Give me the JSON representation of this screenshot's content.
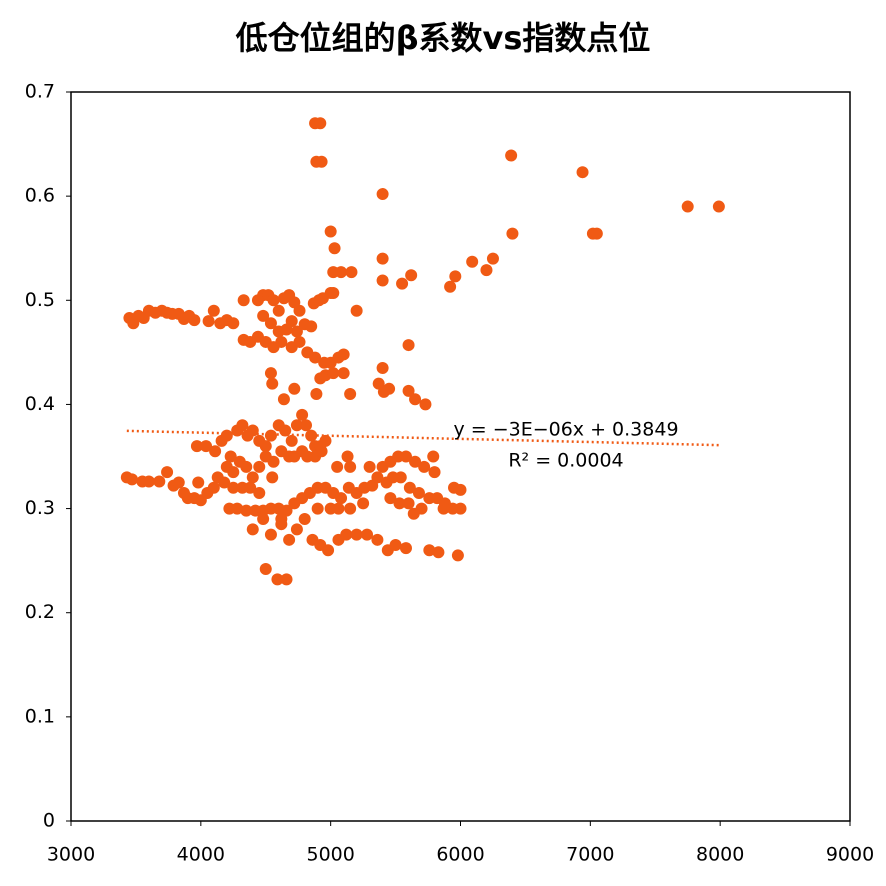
{
  "chart_data": {
    "type": "scatter",
    "title": "低仓位组的β系数vs指数点位",
    "color": "#f05a14",
    "xlim": [
      3000,
      9000
    ],
    "xticks": [
      3000,
      4000,
      5000,
      6000,
      7000,
      8000,
      9000
    ],
    "ylim": [
      0,
      0.7
    ],
    "yticks": [
      0,
      0.1,
      0.2,
      0.3,
      0.4,
      0.5,
      0.6,
      0.7
    ],
    "trendline": {
      "slope": -3e-06,
      "intercept": 0.3849,
      "x_range": [
        3430,
        8000
      ],
      "color": "#f05a14",
      "label": "y = −3E−06x + 0.3849",
      "r2_label": "R² = 0.0004"
    },
    "x": [
      4880,
      4920,
      4890,
      4930,
      5400,
      6390,
      6940,
      7750,
      7990,
      6400,
      7020,
      7050,
      5000,
      5030,
      5020,
      5080,
      5160,
      5400,
      5400,
      5620,
      5550,
      5920,
      5960,
      6090,
      6200,
      6250,
      5000,
      5020,
      4870,
      4910,
      4940,
      3450,
      3480,
      3520,
      3560,
      3600,
      3650,
      3700,
      3740,
      3780,
      3830,
      3870,
      3910,
      3950,
      4060,
      4100,
      4150,
      4200,
      4250,
      4330,
      4440,
      4480,
      4520,
      4560,
      4600,
      4640,
      4680,
      4720,
      4760,
      4480,
      4540,
      4600,
      4660,
      4700,
      4740,
      4800,
      4850,
      4330,
      4380,
      4440,
      4500,
      4560,
      4620,
      4700,
      4760,
      4820,
      4880,
      4950,
      5000,
      5060,
      5100,
      4540,
      4550,
      4720,
      4920,
      4960,
      5020,
      5100,
      4890,
      4640,
      5150,
      5370,
      5410,
      5400,
      5450,
      5600,
      5600,
      5650,
      5730,
      5200,
      3970,
      4040,
      4110,
      4160,
      4200,
      4230,
      4280,
      4320,
      4360,
      4400,
      4450,
      4500,
      4540,
      4600,
      4650,
      4700,
      4740,
      4780,
      4810,
      4850,
      4880,
      4920,
      4960,
      4200,
      4250,
      4300,
      4350,
      4400,
      4450,
      4500,
      4560,
      4620,
      4680,
      4720,
      4780,
      4820,
      4880,
      4130,
      4180,
      4250,
      4320,
      4380,
      4450,
      4550,
      3430,
      3470,
      3550,
      3600,
      3680,
      3740,
      3790,
      3830,
      3870,
      3900,
      3950,
      4000,
      4050,
      4100,
      3980,
      4220,
      4280,
      4350,
      4420,
      4480,
      4540,
      4600,
      4660,
      4720,
      4780,
      4840,
      4900,
      4960,
      5020,
      5080,
      5140,
      5200,
      5260,
      5320,
      4400,
      4480,
      4540,
      4620,
      4680,
      4740,
      4800,
      4860,
      4920,
      4980,
      5060,
      5120,
      5200,
      5280,
      5360,
      5440,
      5500,
      5580,
      5760,
      5830,
      5980,
      4500,
      4590,
      4660,
      4620,
      4900,
      5000,
      5060,
      5150,
      5250,
      5400,
      5460,
      5520,
      5580,
      5650,
      5720,
      5790,
      5800,
      5430,
      5480,
      5540,
      5610,
      5680,
      5460,
      5530,
      5600,
      5700,
      5760,
      5820,
      5880,
      5940,
      6000,
      5950,
      6000,
      5870,
      5640,
      5360,
      5300,
      5130,
      5150,
      5050,
      4930
    ],
    "values": [
      0.67,
      0.67,
      0.633,
      0.633,
      0.602,
      0.639,
      0.623,
      0.59,
      0.59,
      0.564,
      0.564,
      0.564,
      0.566,
      0.55,
      0.527,
      0.527,
      0.527,
      0.54,
      0.519,
      0.524,
      0.516,
      0.513,
      0.523,
      0.537,
      0.529,
      0.54,
      0.507,
      0.507,
      0.497,
      0.5,
      0.502,
      0.483,
      0.478,
      0.485,
      0.483,
      0.49,
      0.488,
      0.49,
      0.488,
      0.487,
      0.487,
      0.482,
      0.485,
      0.481,
      0.48,
      0.49,
      0.478,
      0.481,
      0.478,
      0.5,
      0.5,
      0.505,
      0.505,
      0.5,
      0.49,
      0.502,
      0.505,
      0.498,
      0.49,
      0.485,
      0.478,
      0.47,
      0.472,
      0.48,
      0.47,
      0.477,
      0.475,
      0.462,
      0.46,
      0.465,
      0.46,
      0.455,
      0.46,
      0.455,
      0.46,
      0.45,
      0.445,
      0.44,
      0.44,
      0.445,
      0.448,
      0.43,
      0.42,
      0.415,
      0.425,
      0.428,
      0.43,
      0.43,
      0.41,
      0.405,
      0.41,
      0.42,
      0.412,
      0.435,
      0.415,
      0.457,
      0.413,
      0.405,
      0.4,
      0.49,
      0.36,
      0.36,
      0.355,
      0.365,
      0.37,
      0.35,
      0.375,
      0.38,
      0.37,
      0.375,
      0.365,
      0.36,
      0.37,
      0.38,
      0.375,
      0.365,
      0.38,
      0.39,
      0.38,
      0.37,
      0.36,
      0.36,
      0.365,
      0.34,
      0.335,
      0.345,
      0.34,
      0.33,
      0.34,
      0.35,
      0.345,
      0.355,
      0.35,
      0.35,
      0.355,
      0.35,
      0.35,
      0.33,
      0.325,
      0.32,
      0.32,
      0.32,
      0.315,
      0.33,
      0.33,
      0.328,
      0.326,
      0.326,
      0.326,
      0.335,
      0.322,
      0.325,
      0.315,
      0.31,
      0.31,
      0.308,
      0.315,
      0.32,
      0.325,
      0.3,
      0.3,
      0.298,
      0.298,
      0.298,
      0.3,
      0.3,
      0.298,
      0.305,
      0.31,
      0.315,
      0.32,
      0.32,
      0.315,
      0.31,
      0.32,
      0.315,
      0.32,
      0.322,
      0.28,
      0.29,
      0.275,
      0.285,
      0.27,
      0.28,
      0.29,
      0.27,
      0.265,
      0.26,
      0.27,
      0.275,
      0.275,
      0.275,
      0.27,
      0.26,
      0.265,
      0.262,
      0.26,
      0.258,
      0.255,
      0.242,
      0.232,
      0.232,
      0.29,
      0.3,
      0.3,
      0.3,
      0.3,
      0.305,
      0.34,
      0.345,
      0.35,
      0.35,
      0.345,
      0.34,
      0.35,
      0.335,
      0.325,
      0.33,
      0.33,
      0.32,
      0.315,
      0.31,
      0.305,
      0.305,
      0.3,
      0.31,
      0.31,
      0.305,
      0.3,
      0.3,
      0.32,
      0.318,
      0.3,
      0.295,
      0.33,
      0.34,
      0.35,
      0.34,
      0.34,
      0.355
    ]
  }
}
